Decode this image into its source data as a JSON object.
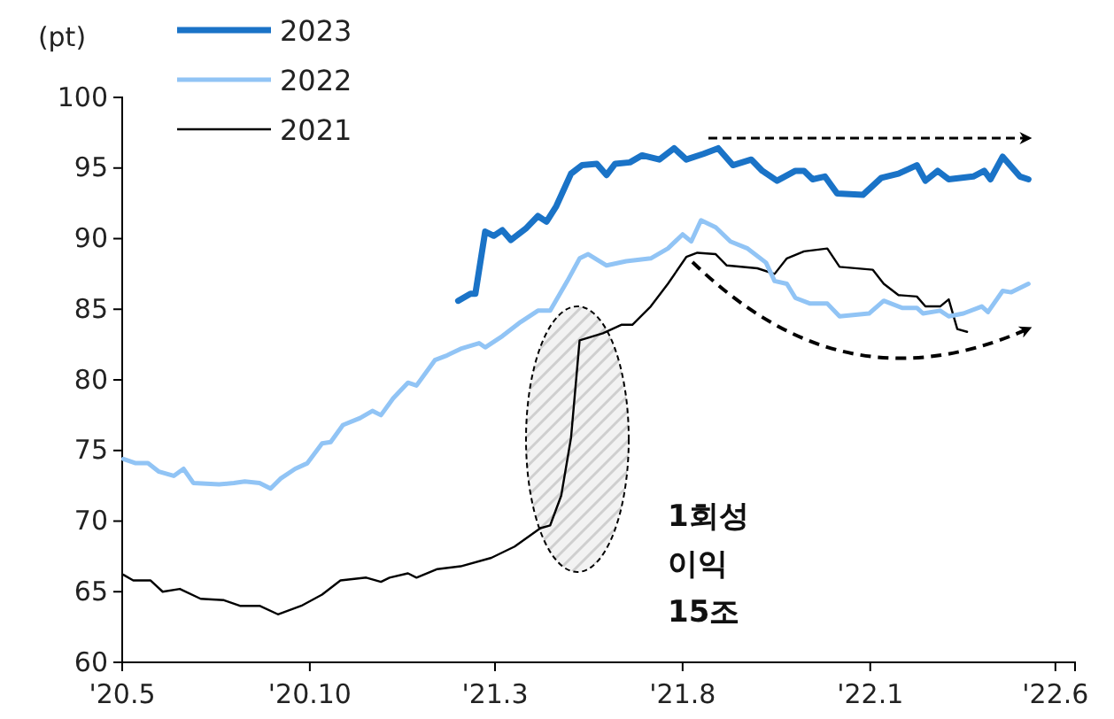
{
  "chart_data": {
    "type": "line",
    "ylabel": "(pt)",
    "legend": "top left",
    "xlim": [
      "2020-05-01",
      "2022-06-17"
    ],
    "xticks": [
      {
        "value": "2020-05-01",
        "label": "'20.5"
      },
      {
        "value": "2020-10-01",
        "label": "'20.10"
      },
      {
        "value": "2021-03-01",
        "label": "'21.3"
      },
      {
        "value": "2021-08-01",
        "label": "'21.8"
      },
      {
        "value": "2022-01-01",
        "label": "'22.1"
      },
      {
        "value": "2022-06-01",
        "label": "'22.6"
      }
    ],
    "ylim": [
      60,
      100
    ],
    "yticks": [
      60,
      65,
      70,
      75,
      80,
      85,
      90,
      95,
      100
    ],
    "annotations": [
      "1회성\n이익\n15조"
    ],
    "series": [
      {
        "name": "2023",
        "color": "#1a73c7",
        "x": [
          "2021-01-30",
          "2021-02-09",
          "2021-02-13",
          "2021-02-21",
          "2021-02-28",
          "2021-03-07",
          "2021-03-14",
          "2021-03-26",
          "2021-04-05",
          "2021-04-12",
          "2021-04-20",
          "2021-05-02",
          "2021-05-11",
          "2021-05-23",
          "2021-05-31",
          "2021-06-07",
          "2021-06-19",
          "2021-06-29",
          "2021-07-13",
          "2021-07-25",
          "2021-08-04",
          "2021-08-18",
          "2021-08-30",
          "2021-09-11",
          "2021-09-26",
          "2021-10-05",
          "2021-10-17",
          "2021-11-01",
          "2021-11-08",
          "2021-11-15",
          "2021-11-25",
          "2021-12-05",
          "2021-12-26",
          "2022-01-10",
          "2022-01-24",
          "2022-02-08",
          "2022-02-15",
          "2022-02-25",
          "2022-03-06",
          "2022-03-26",
          "2022-04-04",
          "2022-04-09",
          "2022-04-19",
          "2022-05-03",
          "2022-05-10"
        ],
        "values": [
          85.6,
          86.1,
          86.1,
          90.5,
          90.2,
          90.6,
          89.9,
          90.7,
          91.6,
          91.2,
          92.3,
          94.6,
          95.2,
          95.3,
          94.5,
          95.3,
          95.4,
          95.9,
          95.6,
          96.4,
          95.6,
          96.0,
          96.4,
          95.2,
          95.6,
          94.8,
          94.1,
          94.8,
          94.8,
          94.2,
          94.4,
          93.2,
          93.1,
          94.3,
          94.6,
          95.2,
          94.1,
          94.8,
          94.2,
          94.4,
          94.8,
          94.2,
          95.8,
          94.4,
          94.2
        ]
      },
      {
        "name": "2022",
        "color": "#91c4f5",
        "x": [
          "2020-05-02",
          "2020-05-12",
          "2020-05-22",
          "2020-05-31",
          "2020-06-12",
          "2020-06-20",
          "2020-06-28",
          "2020-07-19",
          "2020-07-31",
          "2020-08-09",
          "2020-08-21",
          "2020-08-30",
          "2020-09-07",
          "2020-09-19",
          "2020-09-29",
          "2020-10-11",
          "2020-10-18",
          "2020-10-28",
          "2020-11-11",
          "2020-11-21",
          "2020-11-28",
          "2020-12-08",
          "2020-12-20",
          "2020-12-27",
          "2021-01-11",
          "2021-01-20",
          "2021-02-01",
          "2021-02-16",
          "2021-02-21",
          "2021-03-07",
          "2021-03-22",
          "2021-04-05",
          "2021-04-15",
          "2021-04-29",
          "2021-05-09",
          "2021-05-16",
          "2021-05-31",
          "2021-06-16",
          "2021-07-06",
          "2021-07-20",
          "2021-08-01",
          "2021-08-08",
          "2021-08-16",
          "2021-08-28",
          "2021-09-09",
          "2021-09-23",
          "2021-10-08",
          "2021-10-15",
          "2021-10-25",
          "2021-11-01",
          "2021-11-13",
          "2021-11-27",
          "2021-12-07",
          "2021-12-31",
          "2022-01-12",
          "2022-01-27",
          "2022-02-08",
          "2022-02-13",
          "2022-02-27",
          "2022-03-06",
          "2022-03-18",
          "2022-04-02",
          "2022-04-07",
          "2022-04-19",
          "2022-04-26",
          "2022-05-10"
        ],
        "values": [
          74.4,
          74.1,
          74.1,
          73.5,
          73.2,
          73.7,
          72.7,
          72.6,
          72.7,
          72.8,
          72.7,
          72.3,
          73.0,
          73.7,
          74.1,
          75.5,
          75.6,
          76.8,
          77.3,
          77.8,
          77.5,
          78.7,
          79.8,
          79.6,
          81.4,
          81.7,
          82.2,
          82.6,
          82.3,
          83.1,
          84.1,
          84.9,
          84.9,
          87.0,
          88.6,
          88.9,
          88.1,
          88.4,
          88.6,
          89.3,
          90.3,
          89.8,
          91.3,
          90.8,
          89.8,
          89.3,
          88.3,
          87.0,
          86.8,
          85.8,
          85.4,
          85.4,
          84.5,
          84.7,
          85.6,
          85.1,
          85.1,
          84.7,
          84.9,
          84.5,
          84.7,
          85.2,
          84.8,
          86.3,
          86.2,
          86.8
        ]
      },
      {
        "name": "2021",
        "color": "#000000",
        "x": [
          "2020-05-02",
          "2020-05-10",
          "2020-05-24",
          "2020-06-03",
          "2020-06-17",
          "2020-07-04",
          "2020-07-23",
          "2020-08-05",
          "2020-08-21",
          "2020-09-05",
          "2020-09-24",
          "2020-10-11",
          "2020-10-26",
          "2020-11-16",
          "2020-11-28",
          "2020-12-05",
          "2020-12-20",
          "2020-12-27",
          "2021-01-13",
          "2021-02-01",
          "2021-02-26",
          "2021-03-17",
          "2021-04-07",
          "2021-04-15",
          "2021-04-24",
          "2021-05-02",
          "2021-05-09",
          "2021-05-28",
          "2021-06-12",
          "2021-06-21",
          "2021-07-06",
          "2021-07-20",
          "2021-08-04",
          "2021-08-13",
          "2021-08-28",
          "2021-09-06",
          "2021-10-01",
          "2021-10-15",
          "2021-10-25",
          "2021-11-08",
          "2021-11-27",
          "2021-12-07",
          "2022-01-03",
          "2022-01-12",
          "2022-01-24",
          "2022-02-08",
          "2022-02-15",
          "2022-02-27",
          "2022-03-06",
          "2022-03-13",
          "2022-03-21"
        ],
        "values": [
          66.2,
          65.8,
          65.8,
          65.0,
          65.2,
          64.5,
          64.4,
          64.0,
          64.0,
          63.4,
          64.0,
          64.8,
          65.8,
          66.0,
          65.7,
          66.0,
          66.3,
          66.0,
          66.6,
          66.8,
          67.4,
          68.2,
          69.5,
          69.7,
          71.8,
          75.9,
          82.8,
          83.3,
          83.9,
          83.9,
          85.2,
          86.8,
          88.7,
          89.0,
          88.9,
          88.1,
          87.9,
          87.5,
          88.6,
          89.1,
          89.3,
          88.0,
          87.8,
          86.8,
          86.0,
          85.9,
          85.2,
          85.2,
          85.7,
          83.6,
          83.4
        ]
      }
    ]
  }
}
